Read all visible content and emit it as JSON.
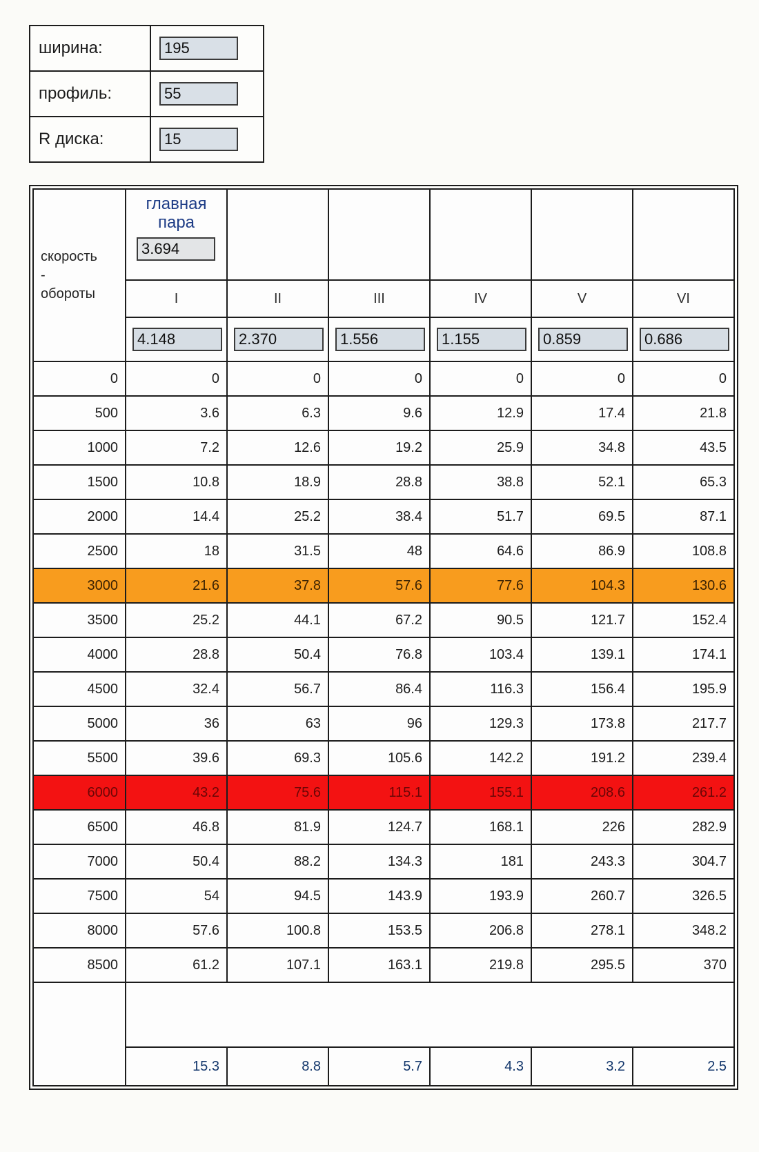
{
  "form": {
    "fields": [
      {
        "label": "ширина:",
        "value": "195"
      },
      {
        "label": "профиль:",
        "value": "55"
      },
      {
        "label": "R диска:",
        "value": "15"
      }
    ]
  },
  "table": {
    "corner_lines": [
      "скорость",
      "-",
      "обороты"
    ],
    "main_pair": {
      "label_lines": [
        "главная",
        "пара"
      ],
      "value": "3.694"
    },
    "gears": [
      "I",
      "II",
      "III",
      "IV",
      "V",
      "VI"
    ],
    "ratios": [
      "4.148",
      "2.370",
      "1.556",
      "1.155",
      "0.859",
      "0.686"
    ],
    "rows": [
      {
        "rpm": "0",
        "values": [
          "0",
          "0",
          "0",
          "0",
          "0",
          "0"
        ],
        "highlight": ""
      },
      {
        "rpm": "500",
        "values": [
          "3.6",
          "6.3",
          "9.6",
          "12.9",
          "17.4",
          "21.8"
        ],
        "highlight": ""
      },
      {
        "rpm": "1000",
        "values": [
          "7.2",
          "12.6",
          "19.2",
          "25.9",
          "34.8",
          "43.5"
        ],
        "highlight": ""
      },
      {
        "rpm": "1500",
        "values": [
          "10.8",
          "18.9",
          "28.8",
          "38.8",
          "52.1",
          "65.3"
        ],
        "highlight": ""
      },
      {
        "rpm": "2000",
        "values": [
          "14.4",
          "25.2",
          "38.4",
          "51.7",
          "69.5",
          "87.1"
        ],
        "highlight": ""
      },
      {
        "rpm": "2500",
        "values": [
          "18",
          "31.5",
          "48",
          "64.6",
          "86.9",
          "108.8"
        ],
        "highlight": ""
      },
      {
        "rpm": "3000",
        "values": [
          "21.6",
          "37.8",
          "57.6",
          "77.6",
          "104.3",
          "130.6"
        ],
        "highlight": "orange"
      },
      {
        "rpm": "3500",
        "values": [
          "25.2",
          "44.1",
          "67.2",
          "90.5",
          "121.7",
          "152.4"
        ],
        "highlight": ""
      },
      {
        "rpm": "4000",
        "values": [
          "28.8",
          "50.4",
          "76.8",
          "103.4",
          "139.1",
          "174.1"
        ],
        "highlight": ""
      },
      {
        "rpm": "4500",
        "values": [
          "32.4",
          "56.7",
          "86.4",
          "116.3",
          "156.4",
          "195.9"
        ],
        "highlight": ""
      },
      {
        "rpm": "5000",
        "values": [
          "36",
          "63",
          "96",
          "129.3",
          "173.8",
          "217.7"
        ],
        "highlight": ""
      },
      {
        "rpm": "5500",
        "values": [
          "39.6",
          "69.3",
          "105.6",
          "142.2",
          "191.2",
          "239.4"
        ],
        "highlight": ""
      },
      {
        "rpm": "6000",
        "values": [
          "43.2",
          "75.6",
          "115.1",
          "155.1",
          "208.6",
          "261.2"
        ],
        "highlight": "red"
      },
      {
        "rpm": "6500",
        "values": [
          "46.8",
          "81.9",
          "124.7",
          "168.1",
          "226",
          "282.9"
        ],
        "highlight": ""
      },
      {
        "rpm": "7000",
        "values": [
          "50.4",
          "88.2",
          "134.3",
          "181",
          "243.3",
          "304.7"
        ],
        "highlight": ""
      },
      {
        "rpm": "7500",
        "values": [
          "54",
          "94.5",
          "143.9",
          "193.9",
          "260.7",
          "326.5"
        ],
        "highlight": ""
      },
      {
        "rpm": "8000",
        "values": [
          "57.6",
          "100.8",
          "153.5",
          "206.8",
          "278.1",
          "348.2"
        ],
        "highlight": ""
      },
      {
        "rpm": "8500",
        "values": [
          "61.2",
          "107.1",
          "163.1",
          "219.8",
          "295.5",
          "370"
        ],
        "highlight": ""
      }
    ],
    "footer": [
      "15.3",
      "8.8",
      "5.7",
      "4.3",
      "3.2",
      "2.5"
    ]
  },
  "colors": {
    "accent_blue": "#29a1f0",
    "light_blue_column": "#c8e3f2",
    "highlight_orange": "#f89c1e",
    "highlight_red": "#f31212",
    "input_background": "#d9e0e7",
    "navy_text": "#1d3c86"
  }
}
